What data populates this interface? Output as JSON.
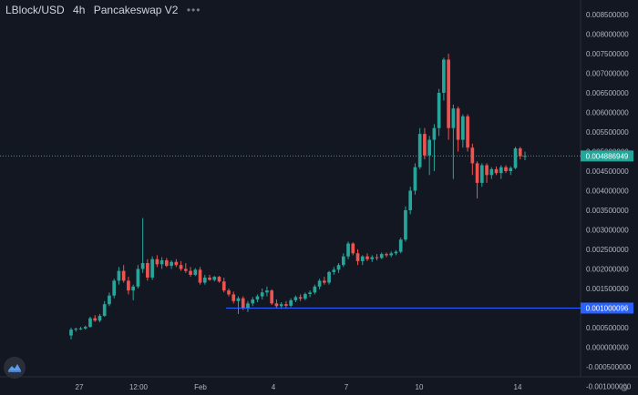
{
  "header": {
    "symbol": "LBlock/USD",
    "interval": "4h",
    "exchange": "Pancakeswap V2",
    "more": "•••"
  },
  "price_axis": {
    "ticks": [
      "0.008500000",
      "0.008000000",
      "0.007500000",
      "0.007000000",
      "0.006500000",
      "0.006000000",
      "0.005500000",
      "0.005000000",
      "0.004500000",
      "0.004000000",
      "0.003500000",
      "0.003000000",
      "0.002500000",
      "0.002000000",
      "0.001500000",
      "0.001000000",
      "0.000500000",
      "0.000000000",
      "-0.000500000",
      "-0.001000000"
    ],
    "current_price_label": "0.004886949",
    "horizontal_line_label": "0.001000096"
  },
  "time_axis": {
    "ticks": [
      "27",
      "12:00",
      "Feb",
      "4",
      "7",
      "10",
      "14"
    ]
  },
  "colors": {
    "background": "#131722",
    "up": "#26a69a",
    "down": "#ef5350",
    "line": "#2962ff",
    "axis_text": "#b2b5be"
  },
  "chart_data": {
    "type": "candlestick",
    "ylim": [
      -0.00115,
      0.0088
    ],
    "current_price": 0.004886949,
    "horizontal_line": 0.001000096,
    "candles": [
      {
        "o": 0.0003,
        "h": 0.0005,
        "l": 0.0002,
        "c": 0.00045
      },
      {
        "o": 0.00045,
        "h": 0.0005,
        "l": 0.0004,
        "c": 0.00047
      },
      {
        "o": 0.00047,
        "h": 0.00052,
        "l": 0.00044,
        "c": 0.00048
      },
      {
        "o": 0.00048,
        "h": 0.00055,
        "l": 0.00045,
        "c": 0.00052
      },
      {
        "o": 0.00052,
        "h": 0.00078,
        "l": 0.0005,
        "c": 0.00074
      },
      {
        "o": 0.00074,
        "h": 0.00082,
        "l": 0.00065,
        "c": 0.00068
      },
      {
        "o": 0.00068,
        "h": 0.00085,
        "l": 0.00064,
        "c": 0.0008
      },
      {
        "o": 0.0008,
        "h": 0.00118,
        "l": 0.00078,
        "c": 0.0011
      },
      {
        "o": 0.0011,
        "h": 0.0014,
        "l": 0.00105,
        "c": 0.00132
      },
      {
        "o": 0.00132,
        "h": 0.00175,
        "l": 0.00125,
        "c": 0.0017
      },
      {
        "o": 0.0017,
        "h": 0.00205,
        "l": 0.0016,
        "c": 0.00195
      },
      {
        "o": 0.00195,
        "h": 0.0021,
        "l": 0.00165,
        "c": 0.0017
      },
      {
        "o": 0.0017,
        "h": 0.0018,
        "l": 0.00135,
        "c": 0.00145
      },
      {
        "o": 0.00145,
        "h": 0.0016,
        "l": 0.0012,
        "c": 0.00155
      },
      {
        "o": 0.00155,
        "h": 0.0021,
        "l": 0.0015,
        "c": 0.002
      },
      {
        "o": 0.002,
        "h": 0.0033,
        "l": 0.0019,
        "c": 0.00215
      },
      {
        "o": 0.00215,
        "h": 0.00225,
        "l": 0.0017,
        "c": 0.00178
      },
      {
        "o": 0.00178,
        "h": 0.00232,
        "l": 0.00172,
        "c": 0.00225
      },
      {
        "o": 0.00225,
        "h": 0.00235,
        "l": 0.00205,
        "c": 0.00212
      },
      {
        "o": 0.00212,
        "h": 0.0023,
        "l": 0.002,
        "c": 0.00222
      },
      {
        "o": 0.00222,
        "h": 0.00228,
        "l": 0.00205,
        "c": 0.00208
      },
      {
        "o": 0.00208,
        "h": 0.00222,
        "l": 0.002,
        "c": 0.00218
      },
      {
        "o": 0.00218,
        "h": 0.00225,
        "l": 0.00205,
        "c": 0.0021
      },
      {
        "o": 0.0021,
        "h": 0.0022,
        "l": 0.00195,
        "c": 0.002
      },
      {
        "o": 0.002,
        "h": 0.00215,
        "l": 0.0019,
        "c": 0.00195
      },
      {
        "o": 0.00195,
        "h": 0.00205,
        "l": 0.0018,
        "c": 0.00185
      },
      {
        "o": 0.00185,
        "h": 0.00202,
        "l": 0.00182,
        "c": 0.00198
      },
      {
        "o": 0.00198,
        "h": 0.00205,
        "l": 0.0016,
        "c": 0.00165
      },
      {
        "o": 0.00165,
        "h": 0.00185,
        "l": 0.0016,
        "c": 0.00178
      },
      {
        "o": 0.00178,
        "h": 0.00185,
        "l": 0.0017,
        "c": 0.00172
      },
      {
        "o": 0.00172,
        "h": 0.00182,
        "l": 0.00168,
        "c": 0.0018
      },
      {
        "o": 0.0018,
        "h": 0.00182,
        "l": 0.00165,
        "c": 0.00168
      },
      {
        "o": 0.00168,
        "h": 0.00178,
        "l": 0.0014,
        "c": 0.00145
      },
      {
        "o": 0.00145,
        "h": 0.0015,
        "l": 0.0013,
        "c": 0.00135
      },
      {
        "o": 0.00135,
        "h": 0.00142,
        "l": 0.00112,
        "c": 0.00118
      },
      {
        "o": 0.00118,
        "h": 0.0013,
        "l": 0.00085,
        "c": 0.00125
      },
      {
        "o": 0.00125,
        "h": 0.0013,
        "l": 0.00095,
        "c": 0.001
      },
      {
        "o": 0.001,
        "h": 0.00118,
        "l": 0.0009,
        "c": 0.00112
      },
      {
        "o": 0.00112,
        "h": 0.00128,
        "l": 0.00105,
        "c": 0.00122
      },
      {
        "o": 0.00122,
        "h": 0.00135,
        "l": 0.00115,
        "c": 0.0013
      },
      {
        "o": 0.0013,
        "h": 0.0015,
        "l": 0.00122,
        "c": 0.0014
      },
      {
        "o": 0.0014,
        "h": 0.00155,
        "l": 0.0013,
        "c": 0.00145
      },
      {
        "o": 0.00145,
        "h": 0.00148,
        "l": 0.00108,
        "c": 0.00112
      },
      {
        "o": 0.00112,
        "h": 0.00122,
        "l": 0.001,
        "c": 0.00105
      },
      {
        "o": 0.00105,
        "h": 0.00115,
        "l": 0.00098,
        "c": 0.0011
      },
      {
        "o": 0.0011,
        "h": 0.00118,
        "l": 0.001,
        "c": 0.00106
      },
      {
        "o": 0.00106,
        "h": 0.00125,
        "l": 0.00102,
        "c": 0.0012
      },
      {
        "o": 0.0012,
        "h": 0.00132,
        "l": 0.00115,
        "c": 0.00128
      },
      {
        "o": 0.00128,
        "h": 0.00135,
        "l": 0.00118,
        "c": 0.00124
      },
      {
        "o": 0.00124,
        "h": 0.0014,
        "l": 0.0012,
        "c": 0.00136
      },
      {
        "o": 0.00136,
        "h": 0.00145,
        "l": 0.00128,
        "c": 0.0014
      },
      {
        "o": 0.0014,
        "h": 0.0016,
        "l": 0.00135,
        "c": 0.00155
      },
      {
        "o": 0.00155,
        "h": 0.00175,
        "l": 0.00148,
        "c": 0.0017
      },
      {
        "o": 0.0017,
        "h": 0.0018,
        "l": 0.0016,
        "c": 0.00165
      },
      {
        "o": 0.00165,
        "h": 0.00195,
        "l": 0.0016,
        "c": 0.00192
      },
      {
        "o": 0.00192,
        "h": 0.00205,
        "l": 0.00185,
        "c": 0.00198
      },
      {
        "o": 0.00198,
        "h": 0.00215,
        "l": 0.0019,
        "c": 0.0021
      },
      {
        "o": 0.0021,
        "h": 0.0024,
        "l": 0.00205,
        "c": 0.00232
      },
      {
        "o": 0.00232,
        "h": 0.0027,
        "l": 0.00225,
        "c": 0.00265
      },
      {
        "o": 0.00265,
        "h": 0.00268,
        "l": 0.00235,
        "c": 0.0024
      },
      {
        "o": 0.0024,
        "h": 0.0025,
        "l": 0.0021,
        "c": 0.0022
      },
      {
        "o": 0.0022,
        "h": 0.00235,
        "l": 0.0021,
        "c": 0.00232
      },
      {
        "o": 0.00232,
        "h": 0.0024,
        "l": 0.0022,
        "c": 0.00225
      },
      {
        "o": 0.00225,
        "h": 0.00235,
        "l": 0.00218,
        "c": 0.0023
      },
      {
        "o": 0.0023,
        "h": 0.00238,
        "l": 0.00222,
        "c": 0.00228
      },
      {
        "o": 0.00228,
        "h": 0.00242,
        "l": 0.00225,
        "c": 0.00238
      },
      {
        "o": 0.00238,
        "h": 0.00242,
        "l": 0.0023,
        "c": 0.00235
      },
      {
        "o": 0.00235,
        "h": 0.00245,
        "l": 0.0023,
        "c": 0.0024
      },
      {
        "o": 0.0024,
        "h": 0.00248,
        "l": 0.00235,
        "c": 0.00244
      },
      {
        "o": 0.00244,
        "h": 0.0028,
        "l": 0.0024,
        "c": 0.00275
      },
      {
        "o": 0.00275,
        "h": 0.0036,
        "l": 0.0027,
        "c": 0.0035
      },
      {
        "o": 0.0035,
        "h": 0.0041,
        "l": 0.0034,
        "c": 0.004
      },
      {
        "o": 0.004,
        "h": 0.0047,
        "l": 0.0039,
        "c": 0.0046
      },
      {
        "o": 0.0046,
        "h": 0.0056,
        "l": 0.00455,
        "c": 0.00545
      },
      {
        "o": 0.00545,
        "h": 0.0056,
        "l": 0.0048,
        "c": 0.0049
      },
      {
        "o": 0.0049,
        "h": 0.0054,
        "l": 0.0044,
        "c": 0.0053
      },
      {
        "o": 0.0053,
        "h": 0.0057,
        "l": 0.0045,
        "c": 0.0056
      },
      {
        "o": 0.0056,
        "h": 0.0066,
        "l": 0.0054,
        "c": 0.0065
      },
      {
        "o": 0.0065,
        "h": 0.0074,
        "l": 0.0063,
        "c": 0.00735
      },
      {
        "o": 0.00735,
        "h": 0.0075,
        "l": 0.0053,
        "c": 0.0056
      },
      {
        "o": 0.0056,
        "h": 0.0062,
        "l": 0.0043,
        "c": 0.0061
      },
      {
        "o": 0.0061,
        "h": 0.00615,
        "l": 0.005,
        "c": 0.0053
      },
      {
        "o": 0.0053,
        "h": 0.00595,
        "l": 0.0051,
        "c": 0.0059
      },
      {
        "o": 0.0059,
        "h": 0.00595,
        "l": 0.005,
        "c": 0.0051
      },
      {
        "o": 0.0051,
        "h": 0.0052,
        "l": 0.0044,
        "c": 0.0047
      },
      {
        "o": 0.0047,
        "h": 0.00475,
        "l": 0.0038,
        "c": 0.0042
      },
      {
        "o": 0.0042,
        "h": 0.0047,
        "l": 0.0041,
        "c": 0.00465
      },
      {
        "o": 0.00465,
        "h": 0.0047,
        "l": 0.0042,
        "c": 0.0044
      },
      {
        "o": 0.0044,
        "h": 0.0046,
        "l": 0.0043,
        "c": 0.00455
      },
      {
        "o": 0.00455,
        "h": 0.00462,
        "l": 0.0044,
        "c": 0.00445
      },
      {
        "o": 0.00445,
        "h": 0.00465,
        "l": 0.0043,
        "c": 0.0046
      },
      {
        "o": 0.0046,
        "h": 0.00465,
        "l": 0.00445,
        "c": 0.0045
      },
      {
        "o": 0.0045,
        "h": 0.00462,
        "l": 0.0044,
        "c": 0.00458
      },
      {
        "o": 0.00458,
        "h": 0.00512,
        "l": 0.00455,
        "c": 0.00508
      },
      {
        "o": 0.00508,
        "h": 0.00512,
        "l": 0.0048,
        "c": 0.00488
      },
      {
        "o": 0.00488,
        "h": 0.005,
        "l": 0.00478,
        "c": 0.00489
      }
    ]
  }
}
